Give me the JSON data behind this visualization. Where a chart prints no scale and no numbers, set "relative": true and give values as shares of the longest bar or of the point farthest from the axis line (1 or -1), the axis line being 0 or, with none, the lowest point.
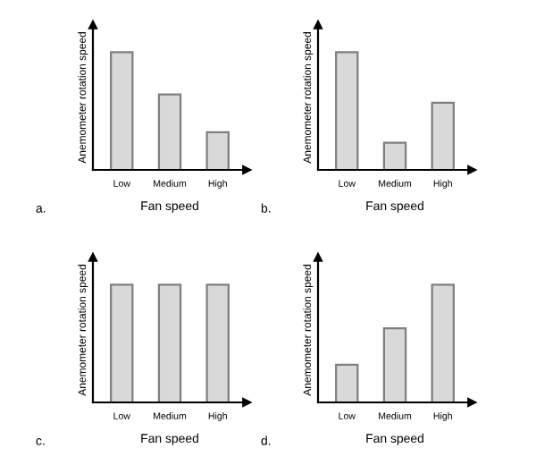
{
  "chart_data": [
    {
      "type": "bar",
      "relative": true,
      "categories": [
        "Low",
        "Medium",
        "High"
      ],
      "values": [
        1,
        0.64,
        0.32
      ],
      "color": "#d9d9d9",
      "xlabel": "Fan speed",
      "ylabel": "Anemometer rotation speed",
      "annotations": [
        "a."
      ],
      "grid": false,
      "legend": false
    },
    {
      "type": "bar",
      "relative": true,
      "categories": [
        "Low",
        "Medium",
        "High"
      ],
      "values": [
        1,
        0.23,
        0.57
      ],
      "color": "#d9d9d9",
      "xlabel": "Fan speed",
      "ylabel": "Anemometer rotation speed",
      "annotations": [
        "b."
      ],
      "grid": false,
      "legend": false
    },
    {
      "type": "bar",
      "relative": true,
      "categories": [
        "Low",
        "Medium",
        "High"
      ],
      "values": [
        1,
        1,
        1
      ],
      "color": "#d9d9d9",
      "xlabel": "Fan speed",
      "ylabel": "Anemometer rotation speed",
      "annotations": [
        "c."
      ],
      "grid": false,
      "legend": false
    },
    {
      "type": "bar",
      "relative": true,
      "categories": [
        "Low",
        "Medium",
        "High"
      ],
      "values": [
        0.32,
        0.63,
        1
      ],
      "color": "#d9d9d9",
      "xlabel": "Fan speed",
      "ylabel": "Anemometer rotation speed",
      "annotations": [
        "d."
      ],
      "grid": false,
      "legend": false
    }
  ]
}
